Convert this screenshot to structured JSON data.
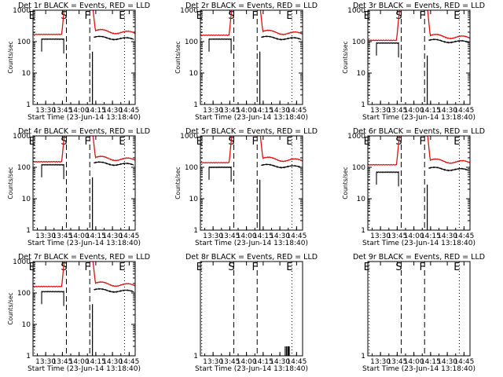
{
  "colors": {
    "events": "#000000",
    "lld": "#dd1111",
    "background": "#ffffff",
    "axis": "#000000"
  },
  "chart_data": [
    {
      "type": "line",
      "title": "Det 1r BLACK = Events, RED = LLD",
      "xlabel": "Start Time (23-Jun-14 13:18:40)",
      "ylabel": "Counts/sec",
      "yscale": "log",
      "ylim": [
        1,
        1000
      ],
      "xlim": [
        13.31,
        14.84
      ],
      "x_tick_labels": [
        "13:30",
        "13:45",
        "14:00",
        "14:15",
        "14:30",
        "14:45"
      ],
      "x_tick_values": [
        13.5,
        13.75,
        14.0,
        14.25,
        14.5,
        14.75
      ],
      "y_tick_labels": [
        "1",
        "10",
        "100",
        "1000"
      ],
      "events": [
        {
          "label": "E",
          "t": 13.33,
          "style": "dotted"
        },
        {
          "label": "S",
          "t": 13.81,
          "style": "dashed"
        },
        {
          "label": "F",
          "t": 14.16,
          "style": "dashed"
        },
        {
          "label": "E",
          "t": 14.68,
          "style": "dotted"
        }
      ],
      "series": [
        {
          "name": "Events",
          "base": 120,
          "end": 125,
          "start": 13.44,
          "stop": 14.82,
          "gap": [
            13.77,
            14.2
          ],
          "spike": [
            14.2,
            14.22
          ]
        },
        {
          "name": "LLD",
          "base": 170,
          "end": 185,
          "start": 13.31,
          "stop": 14.84,
          "rise": [
            13.74,
            13.8
          ],
          "fall": [
            14.18,
            14.24
          ]
        }
      ]
    },
    {
      "type": "line",
      "title": "Det 2r BLACK = Events, RED = LLD",
      "xlabel": "Start Time (23-Jun-14 13:18:40)",
      "ylabel": "Counts/sec",
      "yscale": "log",
      "ylim": [
        1,
        1000
      ],
      "xlim": [
        13.31,
        14.84
      ],
      "x_tick_labels": [
        "13:30",
        "13:45",
        "14:00",
        "14:15",
        "14:30",
        "14:45"
      ],
      "x_tick_values": [
        13.5,
        13.75,
        14.0,
        14.25,
        14.5,
        14.75
      ],
      "y_tick_labels": [
        "1",
        "10",
        "100",
        "1000"
      ],
      "events": [
        {
          "label": "E",
          "t": 13.33,
          "style": "dotted"
        },
        {
          "label": "S",
          "t": 13.81,
          "style": "dashed"
        },
        {
          "label": "F",
          "t": 14.16,
          "style": "dashed"
        },
        {
          "label": "E",
          "t": 14.68,
          "style": "dotted"
        }
      ],
      "series": [
        {
          "name": "Events",
          "base": 120,
          "end": 125,
          "start": 13.44,
          "stop": 14.82,
          "gap": [
            13.77,
            14.2
          ],
          "spike": [
            14.2,
            14.22
          ]
        },
        {
          "name": "LLD",
          "base": 160,
          "end": 175,
          "start": 13.31,
          "stop": 14.84,
          "rise": [
            13.74,
            13.8
          ],
          "fall": [
            14.18,
            14.24
          ]
        }
      ]
    },
    {
      "type": "line",
      "title": "Det 3r BLACK = Events, RED = LLD",
      "xlabel": "Start Time (23-Jun-14 13:18:40)",
      "ylabel": "Counts/sec",
      "yscale": "log",
      "ylim": [
        1,
        1000
      ],
      "xlim": [
        13.31,
        14.84
      ],
      "x_tick_labels": [
        "13:30",
        "13:45",
        "14:00",
        "14:15",
        "14:30",
        "14:45"
      ],
      "x_tick_values": [
        13.5,
        13.75,
        14.0,
        14.25,
        14.5,
        14.75
      ],
      "y_tick_labels": [
        "1",
        "10",
        "100",
        "1000"
      ],
      "events": [
        {
          "label": "E",
          "t": 13.33,
          "style": "dotted"
        },
        {
          "label": "S",
          "t": 13.81,
          "style": "dashed"
        },
        {
          "label": "F",
          "t": 14.16,
          "style": "dashed"
        },
        {
          "label": "E",
          "t": 14.68,
          "style": "dotted"
        }
      ],
      "series": [
        {
          "name": "Events",
          "base": 90,
          "end": 100,
          "start": 13.44,
          "stop": 14.82,
          "gap": [
            13.77,
            14.2
          ],
          "spike": [
            14.2,
            14.22
          ]
        },
        {
          "name": "LLD",
          "base": 110,
          "end": 130,
          "start": 13.31,
          "stop": 14.84,
          "rise": [
            13.74,
            13.8
          ],
          "fall": [
            14.18,
            14.24
          ]
        }
      ]
    },
    {
      "type": "line",
      "title": "Det 4r BLACK = Events, RED = LLD",
      "xlabel": "Start Time (23-Jun-14 13:18:40)",
      "ylabel": "Counts/sec",
      "yscale": "log",
      "ylim": [
        1,
        1000
      ],
      "xlim": [
        13.31,
        14.84
      ],
      "x_tick_labels": [
        "13:30",
        "13:45",
        "14:00",
        "14:15",
        "14:30",
        "14:45"
      ],
      "x_tick_values": [
        13.5,
        13.75,
        14.0,
        14.25,
        14.5,
        14.75
      ],
      "y_tick_labels": [
        "1",
        "10",
        "100",
        "1000"
      ],
      "events": [
        {
          "label": "E",
          "t": 13.33,
          "style": "dotted"
        },
        {
          "label": "S",
          "t": 13.81,
          "style": "dashed"
        },
        {
          "label": "F",
          "t": 14.16,
          "style": "dashed"
        },
        {
          "label": "E",
          "t": 14.68,
          "style": "dotted"
        }
      ],
      "series": [
        {
          "name": "Events",
          "base": 120,
          "end": 125,
          "start": 13.44,
          "stop": 14.82,
          "gap": [
            13.77,
            14.2
          ],
          "spike": [
            14.2,
            14.22
          ]
        },
        {
          "name": "LLD",
          "base": 150,
          "end": 170,
          "start": 13.31,
          "stop": 14.84,
          "rise": [
            13.74,
            13.8
          ],
          "fall": [
            14.18,
            14.24
          ]
        }
      ]
    },
    {
      "type": "line",
      "title": "Det 5r BLACK = Events, RED = LLD",
      "xlabel": "Start Time (23-Jun-14 13:18:40)",
      "ylabel": "Counts/sec",
      "yscale": "log",
      "ylim": [
        1,
        1000
      ],
      "xlim": [
        13.31,
        14.84
      ],
      "x_tick_labels": [
        "13:30",
        "13:45",
        "14:00",
        "14:15",
        "14:30",
        "14:45"
      ],
      "x_tick_values": [
        13.5,
        13.75,
        14.0,
        14.25,
        14.5,
        14.75
      ],
      "y_tick_labels": [
        "1",
        "10",
        "100",
        "1000"
      ],
      "events": [
        {
          "label": "E",
          "t": 13.33,
          "style": "dotted"
        },
        {
          "label": "S",
          "t": 13.81,
          "style": "dashed"
        },
        {
          "label": "F",
          "t": 14.16,
          "style": "dashed"
        },
        {
          "label": "E",
          "t": 14.68,
          "style": "dotted"
        }
      ],
      "series": [
        {
          "name": "Events",
          "base": 100,
          "end": 105,
          "start": 13.44,
          "stop": 14.82,
          "gap": [
            13.77,
            14.2
          ],
          "spike": [
            14.2,
            14.22
          ]
        },
        {
          "name": "LLD",
          "base": 140,
          "end": 160,
          "start": 13.31,
          "stop": 14.84,
          "rise": [
            13.74,
            13.8
          ],
          "fall": [
            14.18,
            14.24
          ]
        }
      ]
    },
    {
      "type": "line",
      "title": "Det 6r BLACK = Events, RED = LLD",
      "xlabel": "Start Time (23-Jun-14 13:18:40)",
      "ylabel": "Counts/sec",
      "yscale": "log",
      "ylim": [
        1,
        1000
      ],
      "xlim": [
        13.31,
        14.84
      ],
      "x_tick_labels": [
        "13:30",
        "13:45",
        "14:00",
        "14:15",
        "14:30",
        "14:45"
      ],
      "x_tick_values": [
        13.5,
        13.75,
        14.0,
        14.25,
        14.5,
        14.75
      ],
      "y_tick_labels": [
        "1",
        "10",
        "100",
        "1000"
      ],
      "events": [
        {
          "label": "E",
          "t": 13.33,
          "style": "dotted"
        },
        {
          "label": "S",
          "t": 13.81,
          "style": "dashed"
        },
        {
          "label": "F",
          "t": 14.16,
          "style": "dashed"
        },
        {
          "label": "E",
          "t": 14.68,
          "style": "dotted"
        }
      ],
      "series": [
        {
          "name": "Events",
          "base": 70,
          "end": 85,
          "start": 13.44,
          "stop": 14.82,
          "gap": [
            13.77,
            14.2
          ],
          "spike": [
            14.2,
            14.22
          ]
        },
        {
          "name": "LLD",
          "base": 120,
          "end": 140,
          "start": 13.31,
          "stop": 14.84,
          "rise": [
            13.74,
            13.8
          ],
          "fall": [
            14.18,
            14.24
          ]
        }
      ]
    },
    {
      "type": "line",
      "title": "Det 7r BLACK = Events, RED = LLD",
      "xlabel": "Start Time (23-Jun-14 13:18:40)",
      "ylabel": "Counts/sec",
      "yscale": "log",
      "ylim": [
        1,
        1000
      ],
      "xlim": [
        13.31,
        14.84
      ],
      "x_tick_labels": [
        "13:30",
        "13:45",
        "14:00",
        "14:15",
        "14:30",
        "14:45"
      ],
      "x_tick_values": [
        13.5,
        13.75,
        14.0,
        14.25,
        14.5,
        14.75
      ],
      "y_tick_labels": [
        "1",
        "10",
        "100",
        "1000"
      ],
      "events": [
        {
          "label": "E",
          "t": 13.33,
          "style": "dotted"
        },
        {
          "label": "S",
          "t": 13.81,
          "style": "dashed"
        },
        {
          "label": "F",
          "t": 14.16,
          "style": "dashed"
        },
        {
          "label": "E",
          "t": 14.68,
          "style": "dotted"
        }
      ],
      "series": [
        {
          "name": "Events",
          "base": 110,
          "end": 115,
          "start": 13.44,
          "stop": 14.82,
          "gap": [
            13.77,
            14.2
          ],
          "spike": [
            14.2,
            14.22
          ]
        },
        {
          "name": "LLD",
          "base": 160,
          "end": 170,
          "start": 13.31,
          "stop": 14.84,
          "rise": [
            13.74,
            13.8
          ],
          "fall": [
            14.18,
            14.24
          ]
        }
      ]
    },
    {
      "type": "line",
      "title": "Det 8r BLACK = Events, RED = LLD",
      "xlabel": "Start Time (23-Jun-14 13:18:40)",
      "ylabel": "",
      "yscale": "log",
      "ylim": [
        1,
        1000
      ],
      "xlim": [
        13.31,
        14.84
      ],
      "x_tick_labels": [
        "13:30",
        "13:45",
        "14:00",
        "14:15",
        "14:30",
        "14:45"
      ],
      "x_tick_values": [
        13.5,
        13.75,
        14.0,
        14.25,
        14.5,
        14.75
      ],
      "y_tick_labels": [
        "1"
      ],
      "events": [
        {
          "label": "E",
          "t": 13.33,
          "style": "dotted"
        },
        {
          "label": "S",
          "t": 13.81,
          "style": "dashed"
        },
        {
          "label": "F",
          "t": 14.16,
          "style": "dashed"
        },
        {
          "label": "E",
          "t": 14.68,
          "style": "dotted"
        }
      ],
      "series": [
        {
          "name": "Events",
          "sparse_spikes": [
            14.58,
            14.6,
            14.62,
            14.63,
            14.64
          ],
          "spike_value": 2
        }
      ]
    },
    {
      "type": "line",
      "title": "Det 9r BLACK = Events, RED = LLD",
      "xlabel": "Start Time (23-Jun-14 13:18:40)",
      "ylabel": "",
      "yscale": "log",
      "ylim": [
        1,
        1000
      ],
      "xlim": [
        13.31,
        14.84
      ],
      "x_tick_labels": [
        "13:30",
        "13:45",
        "14:00",
        "14:15",
        "14:30",
        "14:45"
      ],
      "x_tick_values": [
        13.5,
        13.75,
        14.0,
        14.25,
        14.5,
        14.75
      ],
      "y_tick_labels": [
        "1"
      ],
      "events": [
        {
          "label": "E",
          "t": 13.33,
          "style": "dotted"
        },
        {
          "label": "S",
          "t": 13.81,
          "style": "dashed"
        },
        {
          "label": "F",
          "t": 14.16,
          "style": "dashed"
        },
        {
          "label": "E",
          "t": 14.68,
          "style": "dotted"
        }
      ],
      "series": []
    }
  ]
}
